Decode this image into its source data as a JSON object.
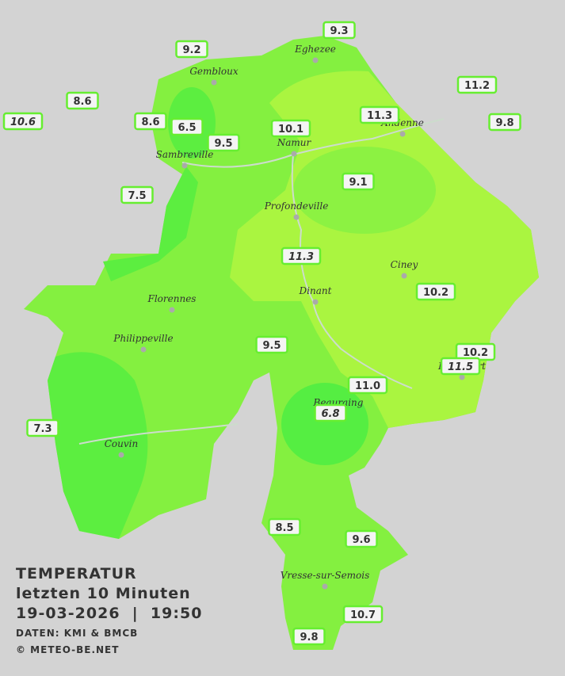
{
  "title": {
    "line1": "TEMPERATUR",
    "line2": "letzten 10 Minuten",
    "line3": "19-03-2026  |  19:50",
    "source": "DATEN: KMI & BMCB",
    "copyright": "© METEO-BE.NET"
  },
  "towns": [
    "Eghezee",
    "Gembloux",
    "Andenne",
    "Namur",
    "Sambreville",
    "Profondeville",
    "Ciney",
    "Dinant",
    "Florennes",
    "Philippeville",
    "Rochefort",
    "Beauraing",
    "Couvin",
    "Vresse-sur-Semois"
  ],
  "stations": [
    "9.3",
    "9.2",
    "8.6",
    "10.6",
    "8.6",
    "6.5",
    "9.5",
    "10.1",
    "11.3",
    "11.2",
    "9.8",
    "7.5",
    "9.1",
    "11.3",
    "10.2",
    "9.5",
    "10.2",
    "11.5",
    "11.0",
    "6.8",
    "7.3",
    "8.5",
    "9.6",
    "10.7",
    "9.8"
  ]
}
